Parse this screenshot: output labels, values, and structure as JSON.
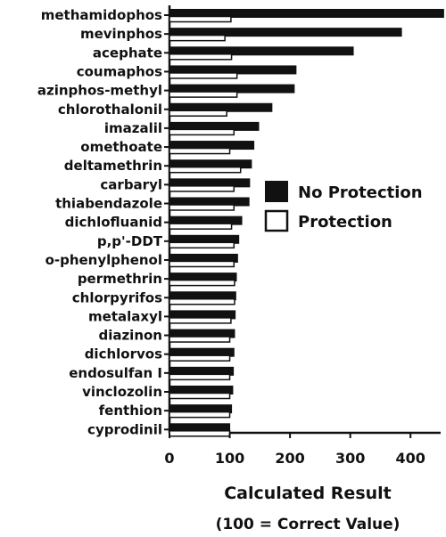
{
  "chart_data": {
    "type": "bar",
    "orientation": "horizontal",
    "categories": [
      "methamidophos",
      "mevinphos",
      "acephate",
      "coumaphos",
      "azinphos-methyl",
      "chlorothalonil",
      "imazalil",
      "omethoate",
      "deltamethrin",
      "carbaryl",
      "thiabendazole",
      "dichlofluanid",
      "p,p'-DDT",
      "o-phenylphenol",
      "permethrin",
      "chlorpyrifos",
      "metalaxyl",
      "diazinon",
      "dichlorvos",
      "endosulfan I",
      "vinclozolin",
      "fenthion",
      "cyprodinil"
    ],
    "series": [
      {
        "name": "No Protection",
        "color": "#111111",
        "values": [
          455,
          385,
          305,
          210,
          207,
          170,
          148,
          140,
          136,
          133,
          132,
          120,
          115,
          113,
          111,
          110,
          109,
          108,
          107,
          106,
          105,
          103,
          100
        ]
      },
      {
        "name": "Protection",
        "color": "#ffffff",
        "values": [
          102,
          92,
          103,
          112,
          112,
          95,
          107,
          100,
          118,
          107,
          107,
          103,
          107,
          107,
          108,
          108,
          102,
          100,
          100,
          100,
          100,
          100,
          100
        ]
      }
    ],
    "xlim": [
      0,
      450
    ],
    "xticks": [
      0,
      100,
      200,
      300,
      400
    ],
    "xlabel": "Calculated Result",
    "xlabel_note": "(100 = Correct Value)",
    "legend_position": "right"
  }
}
